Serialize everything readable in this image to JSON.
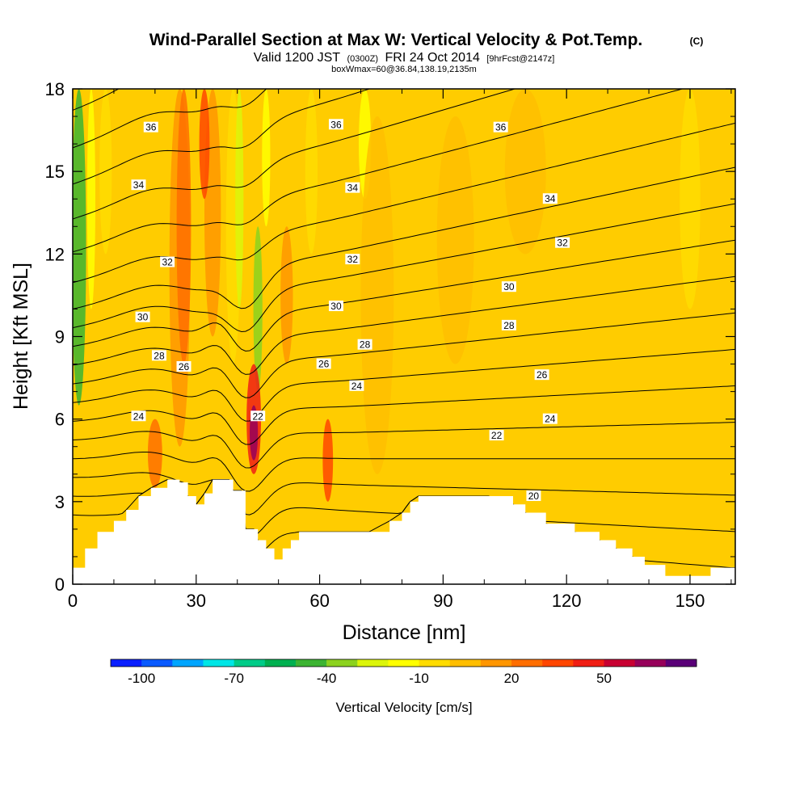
{
  "title": "Wind-Parallel Section at Max W: Vertical Velocity & Pot.Temp.",
  "copyright": "(C)",
  "subtitle": {
    "part1": "Valid 1200 JST",
    "part2": "(0300Z)",
    "part3": "FRI 24 Oct 2014",
    "part4": "[9hrFcst@2147z]"
  },
  "box_note": "boxWmax=60@36.84,138.19,2135m",
  "chart_data": {
    "type": "heatmap",
    "xlabel": "Distance [nm]",
    "ylabel": "Height [Kft MSL]",
    "xlim": [
      0,
      161
    ],
    "ylim": [
      0,
      18
    ],
    "x_ticks": [
      "0",
      "30",
      "60",
      "90",
      "120",
      "150"
    ],
    "y_ticks": [
      "0",
      "3",
      "6",
      "9",
      "12",
      "15",
      "18"
    ],
    "colorbar": {
      "label": "Vertical Velocity [cm/s]",
      "tick_labels": [
        "-100",
        "-70",
        "-40",
        "-10",
        "20",
        "50"
      ],
      "tick_values": [
        -100,
        -70,
        -40,
        -10,
        20,
        50
      ],
      "colors": [
        "#0a1fff",
        "#0a5aff",
        "#00a5ff",
        "#00e6e6",
        "#00cc88",
        "#00b050",
        "#3cb432",
        "#8cd21e",
        "#dcf50a",
        "#ffff00",
        "#ffdc00",
        "#ffbe00",
        "#ff9600",
        "#ff6e00",
        "#ff4600",
        "#f01e14",
        "#c80032",
        "#96005a",
        "#5a0078"
      ]
    },
    "terrain": [
      {
        "x": 0,
        "h": 0.6
      },
      {
        "x": 3,
        "h": 1.3
      },
      {
        "x": 6,
        "h": 1.9
      },
      {
        "x": 10,
        "h": 2.3
      },
      {
        "x": 13,
        "h": 2.7
      },
      {
        "x": 16,
        "h": 3.2
      },
      {
        "x": 19,
        "h": 3.5
      },
      {
        "x": 23,
        "h": 3.8
      },
      {
        "x": 26,
        "h": 3.7
      },
      {
        "x": 28,
        "h": 3.2
      },
      {
        "x": 30,
        "h": 2.9
      },
      {
        "x": 32,
        "h": 3.3
      },
      {
        "x": 34,
        "h": 3.8
      },
      {
        "x": 38,
        "h": 3.8
      },
      {
        "x": 39,
        "h": 3.4
      },
      {
        "x": 41,
        "h": 3.4
      },
      {
        "x": 42,
        "h": 2.0
      },
      {
        "x": 44,
        "h": 2.0
      },
      {
        "x": 45,
        "h": 1.6
      },
      {
        "x": 47,
        "h": 1.3
      },
      {
        "x": 49,
        "h": 0.9
      },
      {
        "x": 51,
        "h": 1.3
      },
      {
        "x": 53,
        "h": 1.6
      },
      {
        "x": 55,
        "h": 1.9
      },
      {
        "x": 72,
        "h": 1.9
      },
      {
        "x": 77,
        "h": 2.3
      },
      {
        "x": 80,
        "h": 2.6
      },
      {
        "x": 82,
        "h": 3.0
      },
      {
        "x": 84,
        "h": 3.2
      },
      {
        "x": 101,
        "h": 3.2
      },
      {
        "x": 107,
        "h": 2.9
      },
      {
        "x": 110,
        "h": 2.6
      },
      {
        "x": 115,
        "h": 2.2
      },
      {
        "x": 122,
        "h": 1.9
      },
      {
        "x": 128,
        "h": 1.6
      },
      {
        "x": 132,
        "h": 1.3
      },
      {
        "x": 136,
        "h": 1.0
      },
      {
        "x": 139,
        "h": 0.7
      },
      {
        "x": 144,
        "h": 0.3
      },
      {
        "x": 155,
        "h": 0.6
      },
      {
        "x": 161,
        "h": 0.6
      }
    ],
    "velocity_features": [
      {
        "x": 3,
        "y": 12,
        "value": -45,
        "note": "downdraft column"
      },
      {
        "x": 25,
        "y": 12,
        "value": 35,
        "note": "updraft column"
      },
      {
        "x": 33,
        "y": 14,
        "value": 40,
        "note": "updraft column"
      },
      {
        "x": 40,
        "y": 12,
        "value": -25,
        "note": "downdraft column"
      },
      {
        "x": 44,
        "y": 5.5,
        "value": 60,
        "note": "maximum updraft"
      },
      {
        "x": 47,
        "y": 16,
        "value": -20,
        "note": "downdraft column"
      },
      {
        "x": 52,
        "y": 10,
        "value": 22,
        "note": "updraft"
      },
      {
        "x": 62,
        "y": 4.5,
        "value": 30,
        "note": "updraft"
      },
      {
        "x": 70,
        "y": 15,
        "value": -15,
        "note": "downdraft"
      }
    ],
    "theta_contours": [
      {
        "value": 20,
        "label": "20",
        "label_x": 112,
        "label_y": 3.2
      },
      {
        "value": 22,
        "label": "22",
        "label_x": 103,
        "label_y": 5.4
      },
      {
        "value": 22,
        "label": "22",
        "label_x": 45,
        "label_y": 6.1
      },
      {
        "value": 24,
        "label": "24",
        "label_x": 16,
        "label_y": 6.1
      },
      {
        "value": 24,
        "label": "24",
        "label_x": 69,
        "label_y": 7.2
      },
      {
        "value": 24,
        "label": "24",
        "label_x": 116,
        "label_y": 6.0
      },
      {
        "value": 26,
        "label": "26",
        "label_x": 27,
        "label_y": 7.9
      },
      {
        "value": 26,
        "label": "26",
        "label_x": 61,
        "label_y": 8.0
      },
      {
        "value": 26,
        "label": "26",
        "label_x": 114,
        "label_y": 7.6
      },
      {
        "value": 28,
        "label": "28",
        "label_x": 21,
        "label_y": 8.3
      },
      {
        "value": 28,
        "label": "28",
        "label_x": 71,
        "label_y": 8.7
      },
      {
        "value": 28,
        "label": "28",
        "label_x": 106,
        "label_y": 9.4
      },
      {
        "value": 30,
        "label": "30",
        "label_x": 17,
        "label_y": 9.7
      },
      {
        "value": 30,
        "label": "30",
        "label_x": 64,
        "label_y": 10.1
      },
      {
        "value": 30,
        "label": "30",
        "label_x": 106,
        "label_y": 10.8
      },
      {
        "value": 32,
        "label": "32",
        "label_x": 23,
        "label_y": 11.7
      },
      {
        "value": 32,
        "label": "32",
        "label_x": 68,
        "label_y": 11.8
      },
      {
        "value": 32,
        "label": "32",
        "label_x": 119,
        "label_y": 12.4
      },
      {
        "value": 34,
        "label": "34",
        "label_x": 16,
        "label_y": 14.5
      },
      {
        "value": 34,
        "label": "34",
        "label_x": 68,
        "label_y": 14.4
      },
      {
        "value": 34,
        "label": "34",
        "label_x": 116,
        "label_y": 14.0
      },
      {
        "value": 36,
        "label": "36",
        "label_x": 19,
        "label_y": 16.6
      },
      {
        "value": 36,
        "label": "36",
        "label_x": 64,
        "label_y": 16.7
      },
      {
        "value": 36,
        "label": "36",
        "label_x": 104,
        "label_y": 16.6
      }
    ]
  }
}
